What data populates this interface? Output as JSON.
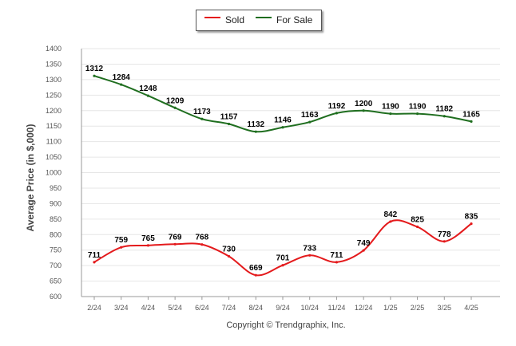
{
  "chart_data": {
    "type": "line",
    "categories": [
      "2/24",
      "3/24",
      "4/24",
      "5/24",
      "6/24",
      "7/24",
      "8/24",
      "9/24",
      "10/24",
      "11/24",
      "12/24",
      "1/25",
      "2/25",
      "3/25",
      "4/25"
    ],
    "series": [
      {
        "name": "Sold",
        "color": "#e41a1c",
        "values": [
          711,
          759,
          765,
          769,
          768,
          730,
          669,
          701,
          733,
          711,
          749,
          842,
          825,
          778,
          835
        ]
      },
      {
        "name": "For Sale",
        "color": "#1f6e1f",
        "values": [
          1312,
          1284,
          1248,
          1209,
          1173,
          1157,
          1132,
          1146,
          1163,
          1192,
          1200,
          1190,
          1190,
          1182,
          1165
        ]
      }
    ],
    "ylabel": "Average Price (in $,000)",
    "xlabel": "",
    "ylim": [
      600,
      1400
    ],
    "yticks": [
      600,
      650,
      700,
      750,
      800,
      850,
      900,
      950,
      1000,
      1050,
      1100,
      1150,
      1200,
      1250,
      1300,
      1350,
      1400
    ],
    "grid": true,
    "legend_position": "top-center"
  },
  "legend": {
    "sold_label": "Sold",
    "for_sale_label": "For Sale"
  },
  "footer": {
    "copyright": "Copyright © Trendgraphix, Inc."
  }
}
